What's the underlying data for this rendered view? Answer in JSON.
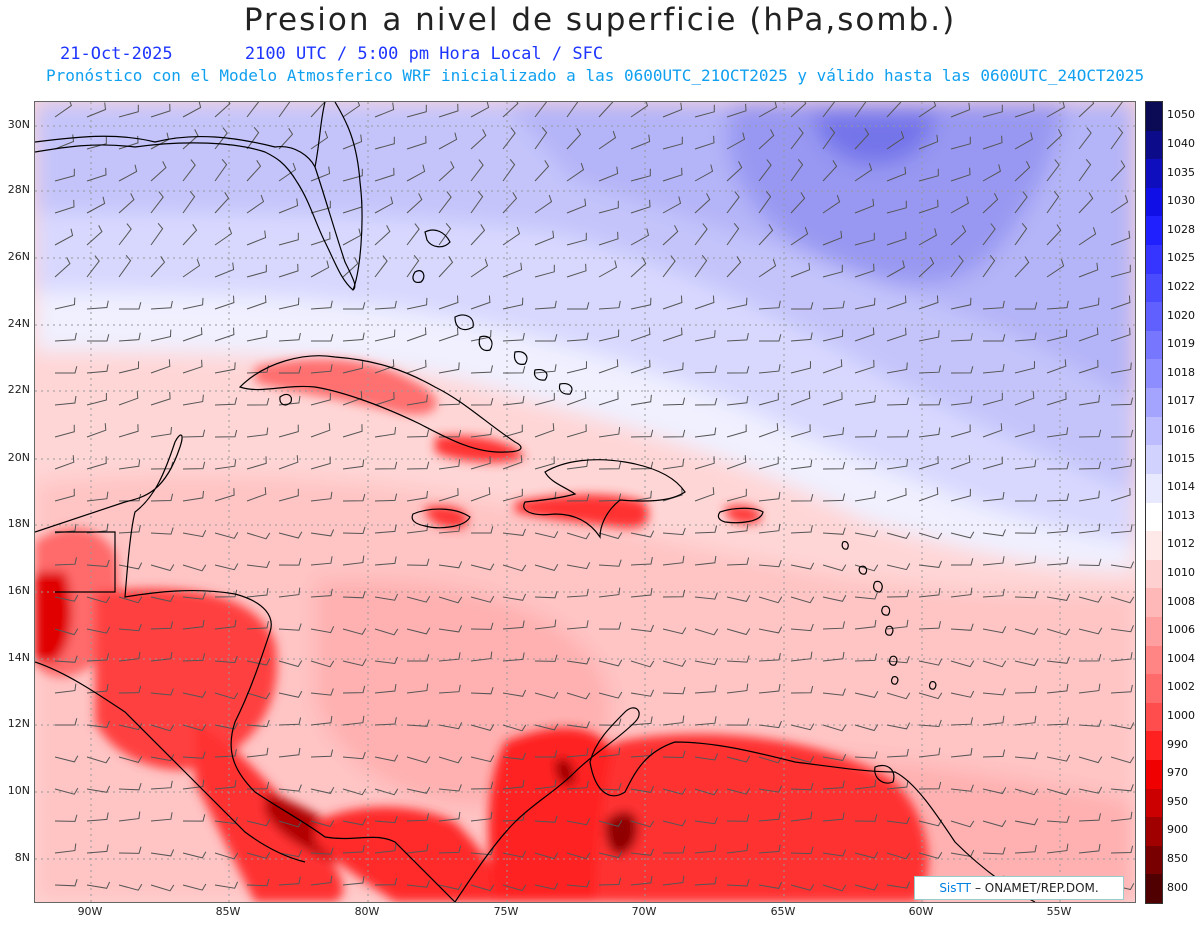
{
  "header": {
    "title": "Presion a nivel de superficie (hPa,somb.)",
    "date": "21-Oct-2025",
    "time": "2100 UTC / 5:00 pm Hora Local / SFC",
    "model_line": "Pronóstico con el Modelo Atmosferico WRF inicializado a las 0600UTC_21OCT2025 y válido hasta las  0600UTC_24OCT2025"
  },
  "map": {
    "lat_labels": [
      "30N",
      "28N",
      "26N",
      "24N",
      "22N",
      "20N",
      "18N",
      "16N",
      "14N",
      "12N",
      "10N",
      "8N"
    ],
    "lon_labels": [
      "90W",
      "85W",
      "80W",
      "75W",
      "70W",
      "65W",
      "60W",
      "55W"
    ],
    "colors": {
      "land_outline": "#000000",
      "gridline": "#999999",
      "wind_barb": "#555555"
    }
  },
  "colorbar": {
    "levels": [
      "1050",
      "1040",
      "1035",
      "1030",
      "1028",
      "1025",
      "1022",
      "1020",
      "1019",
      "1018",
      "1017",
      "1016",
      "1015",
      "1014",
      "1013",
      "1012",
      "1010",
      "1008",
      "1006",
      "1004",
      "1002",
      "1000",
      "990",
      "970",
      "950",
      "900",
      "850",
      "800"
    ],
    "colors": [
      "#0a0a55",
      "#0c0c8a",
      "#0e0ebe",
      "#1010e6",
      "#2020ff",
      "#3535ff",
      "#4a4aff",
      "#6060ff",
      "#7676ff",
      "#8d8dff",
      "#a4a4ff",
      "#bcbcff",
      "#d2d2ff",
      "#e8e8ff",
      "#ffffff",
      "#ffe8e8",
      "#ffd0d0",
      "#ffb8b8",
      "#ff9f9f",
      "#ff8585",
      "#ff6a6a",
      "#ff4d4d",
      "#ff2020",
      "#f00000",
      "#cc0000",
      "#a00000",
      "#780000",
      "#500000"
    ]
  },
  "credit": {
    "brand": "SisTT",
    "org": "– ONAMET/REP.DOM."
  }
}
